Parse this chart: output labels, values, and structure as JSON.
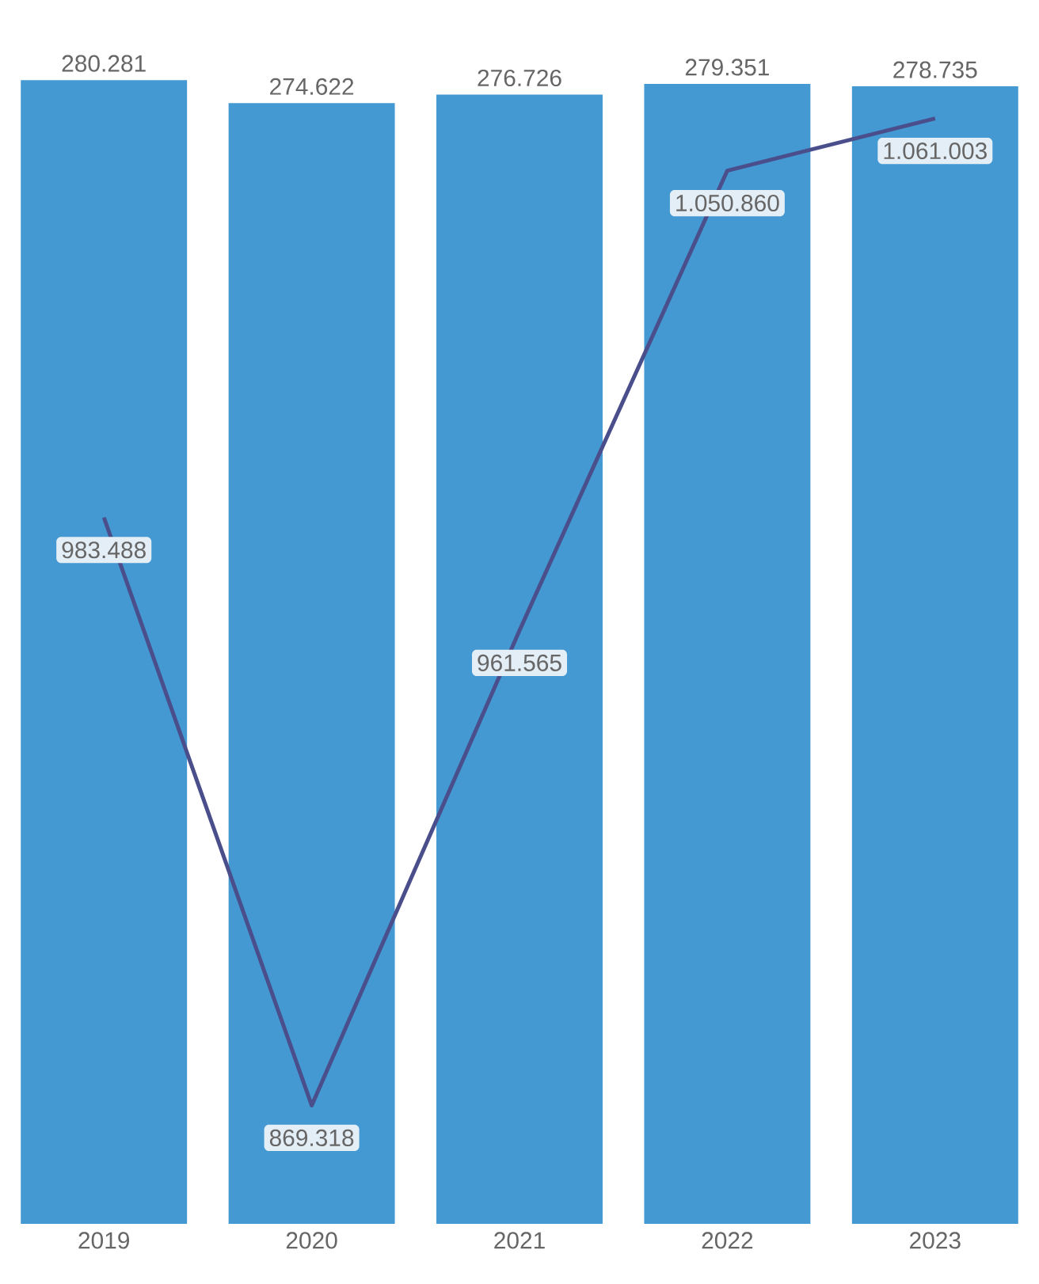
{
  "chart_data": {
    "type": "bar",
    "categories": [
      "2019",
      "2020",
      "2021",
      "2022",
      "2023"
    ],
    "series": [
      {
        "color": "#4499d3",
        "values": [
          280281,
          274622,
          276726,
          279351,
          278735
        ],
        "value_labels": [
          "280.281",
          "274.622",
          "276.726",
          "279.351",
          "278.735"
        ]
      },
      {
        "type": "line",
        "axis": "y2",
        "color": "#4a4f8c",
        "values": [
          983488,
          869318,
          961565,
          1050860,
          1061003
        ],
        "value_labels": [
          "983.488",
          "869.318",
          "961.565",
          "1.050.860",
          "1.061.003"
        ]
      }
    ],
    "tick_labels": "x"
  }
}
